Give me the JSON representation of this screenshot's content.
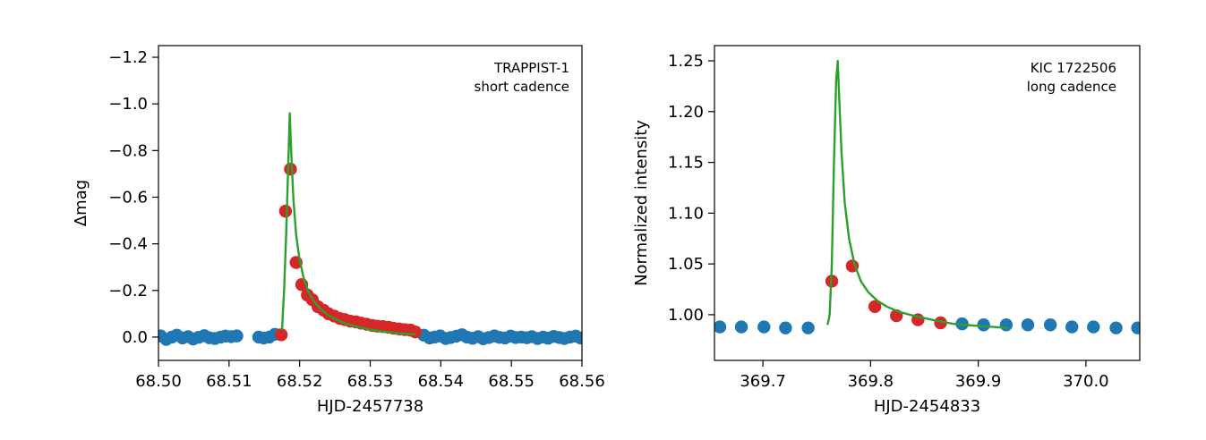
{
  "chart_data": [
    {
      "type": "scatter",
      "xlabel": "HJD-2457738",
      "ylabel": "Δmag",
      "xlim": [
        68.5,
        68.56
      ],
      "ylim": [
        0.1,
        -1.25
      ],
      "y_inverted": true,
      "xticks": [
        "68.50",
        "68.51",
        "68.52",
        "68.53",
        "68.54",
        "68.55",
        "68.56"
      ],
      "yticks": [
        "0.0",
        "−0.2",
        "−0.4",
        "−0.6",
        "−0.8",
        "−1.0",
        "−1.2"
      ],
      "annotation": [
        "TRAPPIST-1",
        "short cadence"
      ],
      "series": [
        {
          "role": "quiescent",
          "color": "#1f77b4",
          "x": [
            68.5003,
            68.5011,
            68.5019,
            68.5026,
            68.5034,
            68.5042,
            68.5049,
            68.5057,
            68.5065,
            68.5072,
            68.508,
            68.5088,
            68.5095,
            68.5103,
            68.5111,
            68.5142,
            68.5149,
            68.5157,
            68.5165,
            68.5376,
            68.5384,
            68.5391,
            68.5399,
            68.5407,
            68.5414,
            68.5422,
            68.543,
            68.5437,
            68.5445,
            68.5453,
            68.546,
            68.5468,
            68.5476,
            68.5483,
            68.5491,
            68.5499,
            68.5506,
            68.5514,
            68.5522,
            68.5529,
            68.5537,
            68.5545,
            68.5552,
            68.556,
            68.5568,
            68.5575,
            68.5583,
            68.5591,
            68.5598
          ],
          "y": [
            -0.005,
            0.01,
            0.0,
            -0.008,
            0.004,
            -0.002,
            0.008,
            0.001,
            -0.006,
            0.003,
            0.006,
            0.0,
            -0.004,
            -0.002,
            -0.005,
            0.0,
            0.004,
            0.0,
            -0.012,
            -0.008,
            0.004,
            0.0,
            -0.005,
            0.006,
            0.002,
            -0.004,
            -0.01,
            0.0,
            0.005,
            -0.002,
            0.007,
            0.002,
            -0.005,
            0.001,
            0.004,
            -0.004,
            0.002,
            0.0,
            0.003,
            -0.002,
            0.006,
            0.0,
            0.005,
            -0.003,
            0.002,
            0.006,
            0.0,
            -0.004,
            0.004
          ]
        },
        {
          "role": "flare",
          "color": "#d62728",
          "x": [
            68.5174,
            68.518,
            68.5187,
            68.5195,
            68.5203,
            68.5211,
            68.5218,
            68.5226,
            68.5234,
            68.5241,
            68.5249,
            68.5257,
            68.5264,
            68.5272,
            68.528,
            68.5287,
            68.5295,
            68.5303,
            68.531,
            68.5318,
            68.5326,
            68.5333,
            68.5341,
            68.5349,
            68.5357,
            68.5364
          ],
          "y": [
            -0.01,
            -0.54,
            -0.72,
            -0.32,
            -0.225,
            -0.18,
            -0.16,
            -0.13,
            -0.115,
            -0.1,
            -0.09,
            -0.08,
            -0.075,
            -0.068,
            -0.065,
            -0.06,
            -0.055,
            -0.05,
            -0.047,
            -0.045,
            -0.042,
            -0.038,
            -0.035,
            -0.032,
            -0.03,
            -0.022
          ]
        }
      ],
      "model": {
        "role": "flare model",
        "color": "#2ca02c",
        "x": [
          68.5175,
          68.5178,
          68.5181,
          68.5184,
          68.5186,
          68.5188,
          68.5191,
          68.5195,
          68.52,
          68.5206,
          68.5213,
          68.5221,
          68.523,
          68.524,
          68.5252,
          68.5265,
          68.528,
          68.5297,
          68.5315,
          68.5335,
          68.5355,
          68.5365
        ],
        "y": [
          -0.03,
          -0.2,
          -0.45,
          -0.75,
          -0.96,
          -0.8,
          -0.6,
          -0.44,
          -0.33,
          -0.25,
          -0.19,
          -0.15,
          -0.12,
          -0.095,
          -0.075,
          -0.058,
          -0.045,
          -0.034,
          -0.025,
          -0.018,
          -0.013,
          -0.011
        ]
      }
    },
    {
      "type": "scatter",
      "xlabel": "HJD-2454833",
      "ylabel": "Normalized intensity",
      "xlim": [
        369.655,
        370.05
      ],
      "ylim": [
        0.955,
        1.265
      ],
      "xticks": [
        "369.7",
        "369.8",
        "369.9",
        "370.0"
      ],
      "yticks": [
        "1.00",
        "1.05",
        "1.10",
        "1.15",
        "1.20",
        "1.25"
      ],
      "annotation": [
        "KIC 1722506",
        "long cadence"
      ],
      "series": [
        {
          "role": "quiescent",
          "color": "#1f77b4",
          "x": [
            369.66,
            369.68,
            369.701,
            369.721,
            369.742,
            369.885,
            369.905,
            369.926,
            369.946,
            369.967,
            369.987,
            370.007,
            370.028,
            370.048
          ],
          "y": [
            0.988,
            0.988,
            0.988,
            0.987,
            0.987,
            0.991,
            0.99,
            0.99,
            0.99,
            0.99,
            0.988,
            0.988,
            0.987,
            0.987
          ]
        },
        {
          "role": "flare",
          "color": "#d62728",
          "x": [
            369.764,
            369.783,
            369.804,
            369.824,
            369.844,
            369.865
          ],
          "y": [
            1.033,
            1.048,
            1.008,
            0.999,
            0.995,
            0.992
          ]
        }
      ],
      "model": {
        "role": "flare model",
        "color": "#2ca02c",
        "x": [
          369.76,
          369.762,
          369.764,
          369.766,
          369.768,
          369.7695,
          369.771,
          369.773,
          369.776,
          369.78,
          369.785,
          369.791,
          369.798,
          369.806,
          369.815,
          369.826,
          369.84,
          369.857,
          369.877,
          369.9,
          369.928
        ],
        "y": [
          0.99,
          1.0,
          1.05,
          1.15,
          1.23,
          1.25,
          1.21,
          1.16,
          1.11,
          1.075,
          1.05,
          1.033,
          1.022,
          1.014,
          1.008,
          1.003,
          0.999,
          0.995,
          0.991,
          0.989,
          0.987
        ]
      }
    }
  ]
}
